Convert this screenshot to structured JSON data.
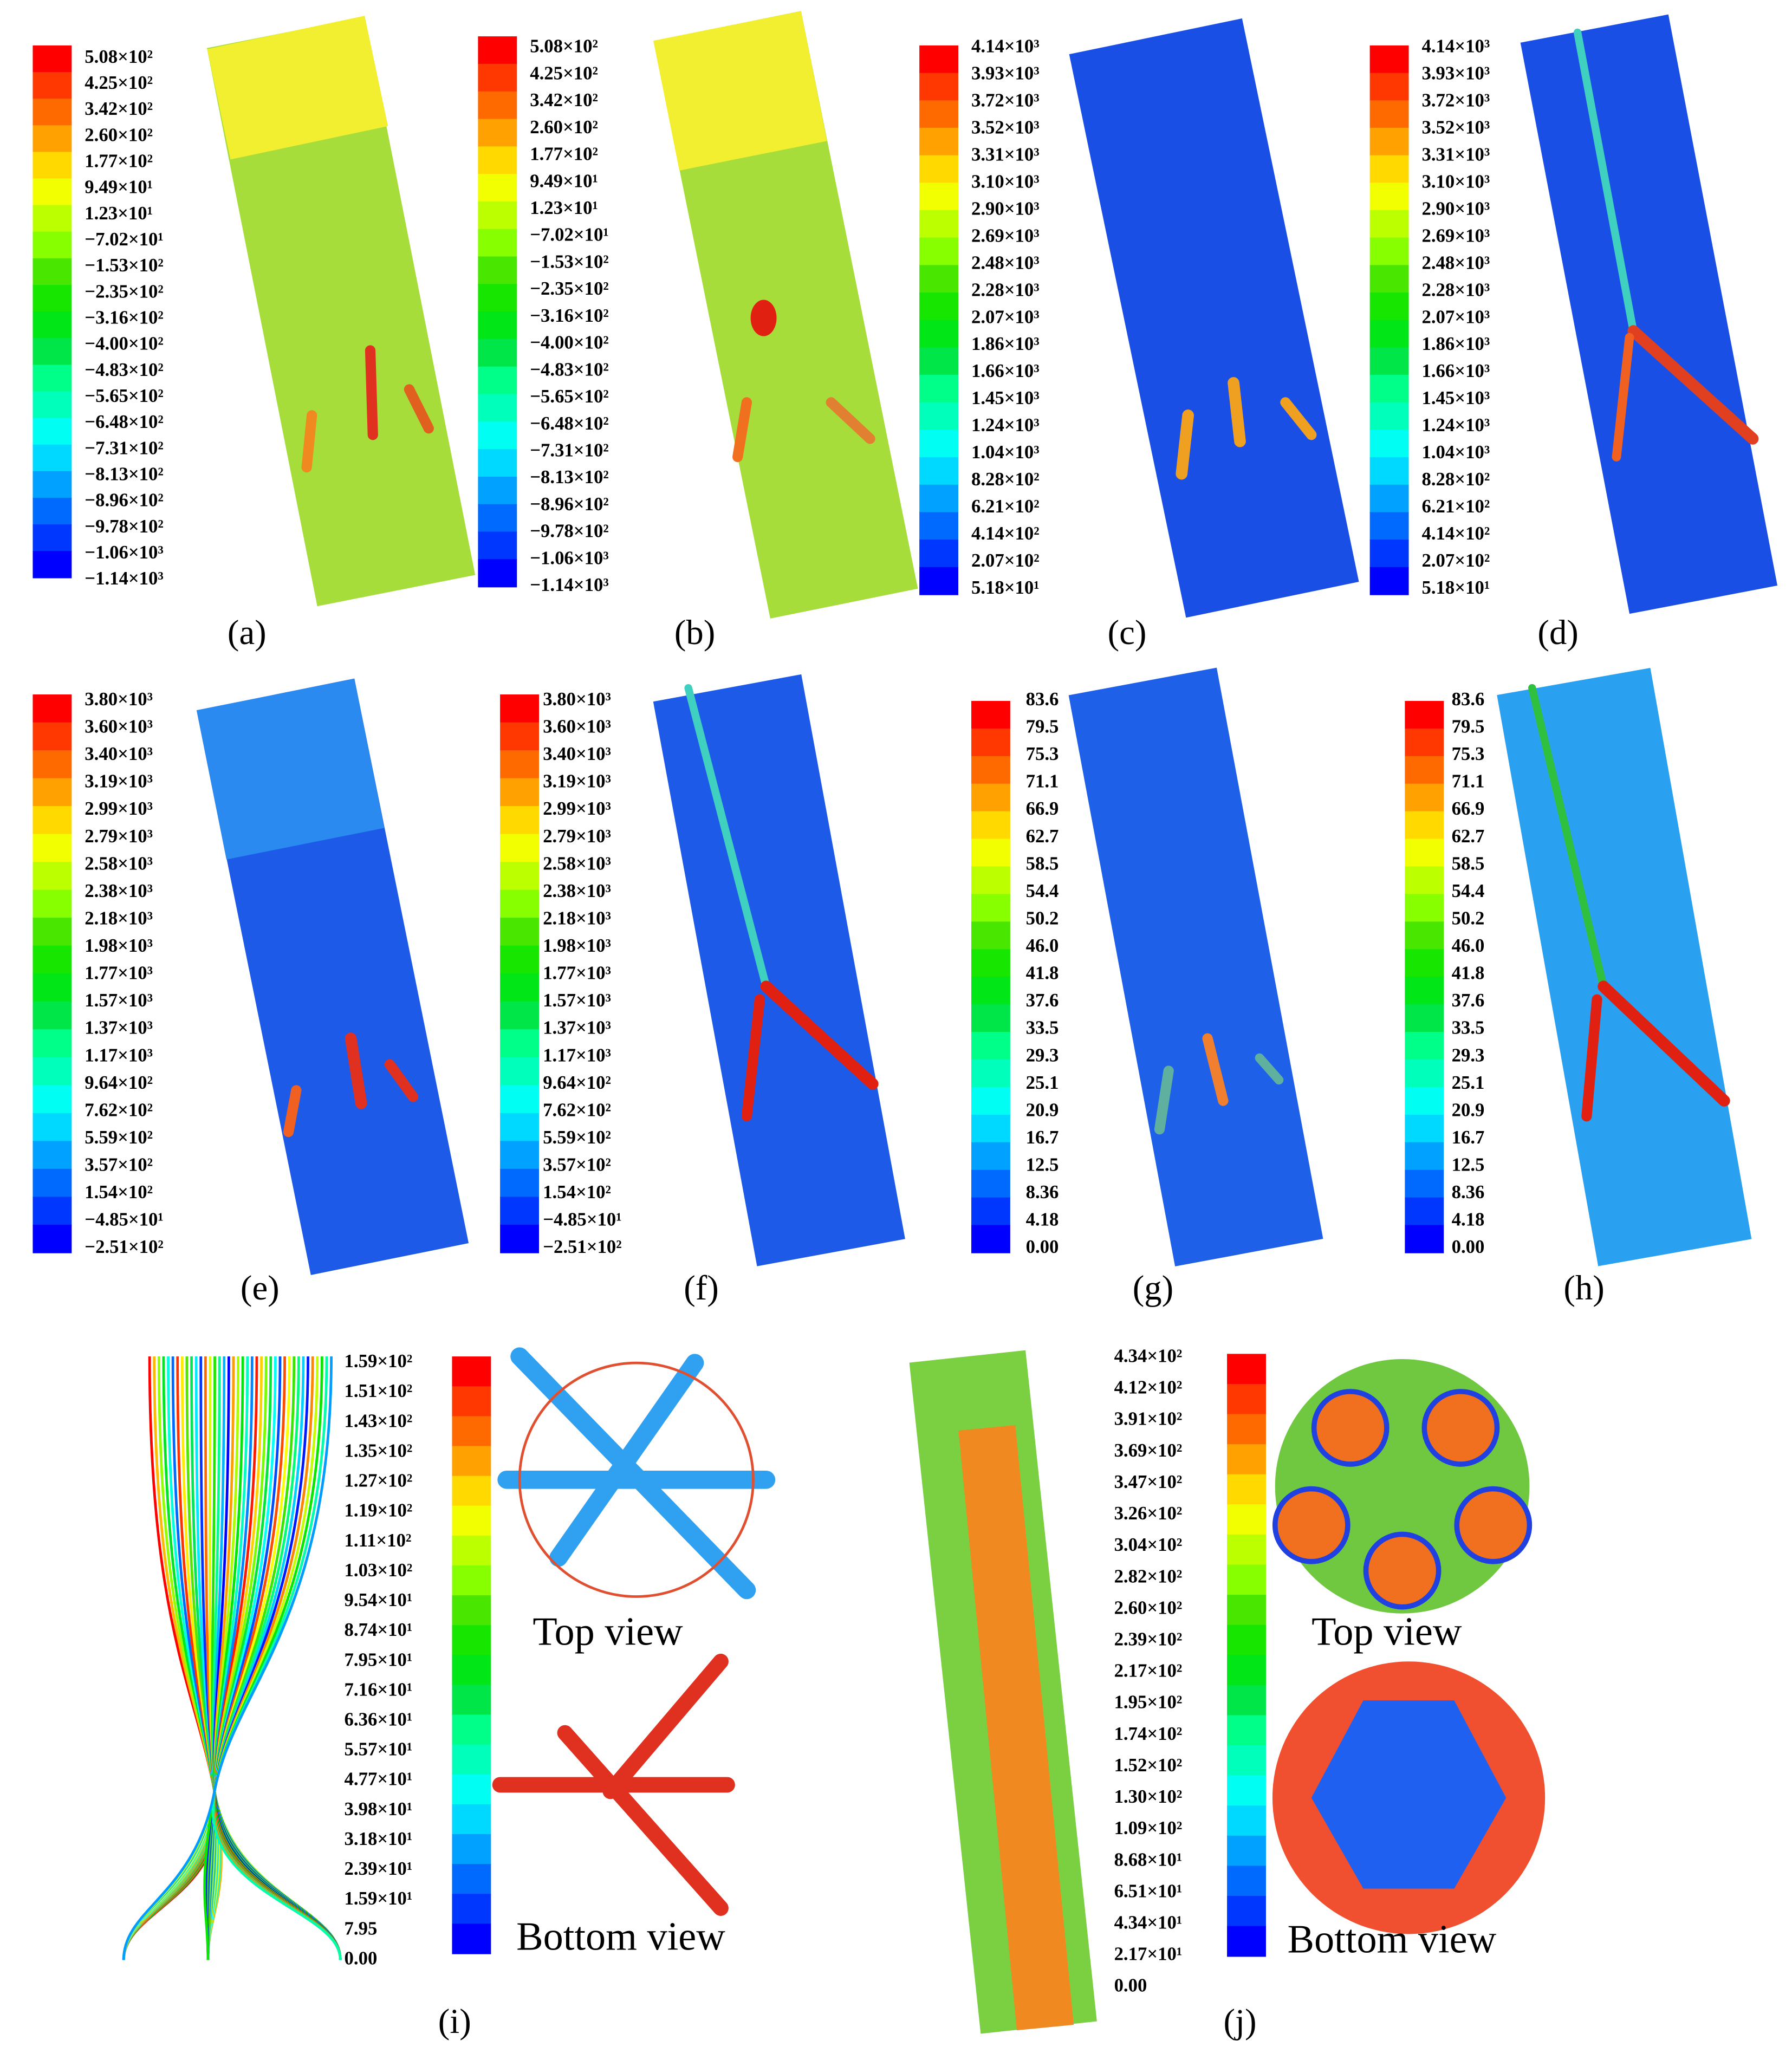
{
  "panels": [
    {
      "label": "(a)",
      "colorbar": [
        "5.08×10²",
        "4.25×10²",
        "3.42×10²",
        "2.60×10²",
        "1.77×10²",
        "9.49×10¹",
        "1.23×10¹",
        "−7.02×10¹",
        "−1.53×10²",
        "−2.35×10²",
        "−3.16×10²",
        "−4.00×10²",
        "−4.83×10²",
        "−5.65×10²",
        "−6.48×10²",
        "−7.31×10²",
        "−8.13×10²",
        "−8.96×10²",
        "−9.78×10²",
        "−1.06×10³",
        "−1.14×10³"
      ]
    },
    {
      "label": "(b)",
      "colorbar": [
        "5.08×10²",
        "4.25×10²",
        "3.42×10²",
        "2.60×10²",
        "1.77×10²",
        "9.49×10¹",
        "1.23×10¹",
        "−7.02×10¹",
        "−1.53×10²",
        "−2.35×10²",
        "−3.16×10²",
        "−4.00×10²",
        "−4.83×10²",
        "−5.65×10²",
        "−6.48×10²",
        "−7.31×10²",
        "−8.13×10²",
        "−8.96×10²",
        "−9.78×10²",
        "−1.06×10³",
        "−1.14×10³"
      ]
    },
    {
      "label": "(c)",
      "colorbar": [
        "4.14×10³",
        "3.93×10³",
        "3.72×10³",
        "3.52×10³",
        "3.31×10³",
        "3.10×10³",
        "2.90×10³",
        "2.69×10³",
        "2.48×10³",
        "2.28×10³",
        "2.07×10³",
        "1.86×10³",
        "1.66×10³",
        "1.45×10³",
        "1.24×10³",
        "1.04×10³",
        "8.28×10²",
        "6.21×10²",
        "4.14×10²",
        "2.07×10²",
        "5.18×10¹"
      ]
    },
    {
      "label": "(d)",
      "colorbar": [
        "4.14×10³",
        "3.93×10³",
        "3.72×10³",
        "3.52×10³",
        "3.31×10³",
        "3.10×10³",
        "2.90×10³",
        "2.69×10³",
        "2.48×10³",
        "2.28×10³",
        "2.07×10³",
        "1.86×10³",
        "1.66×10³",
        "1.45×10³",
        "1.24×10³",
        "1.04×10³",
        "8.28×10²",
        "6.21×10²",
        "4.14×10²",
        "2.07×10²",
        "5.18×10¹"
      ]
    },
    {
      "label": "(e)",
      "colorbar": [
        "3.80×10³",
        "3.60×10³",
        "3.40×10³",
        "3.19×10³",
        "2.99×10³",
        "2.79×10³",
        "2.58×10³",
        "2.38×10³",
        "2.18×10³",
        "1.98×10³",
        "1.77×10³",
        "1.57×10³",
        "1.37×10³",
        "1.17×10³",
        "9.64×10²",
        "7.62×10²",
        "5.59×10²",
        "3.57×10²",
        "1.54×10²",
        "−4.85×10¹",
        "−2.51×10²"
      ]
    },
    {
      "label": "(f)",
      "colorbar": [
        "3.80×10³",
        "3.60×10³",
        "3.40×10³",
        "3.19×10³",
        "2.99×10³",
        "2.79×10³",
        "2.58×10³",
        "2.38×10³",
        "2.18×10³",
        "1.98×10³",
        "1.77×10³",
        "1.57×10³",
        "1.37×10³",
        "1.17×10³",
        "9.64×10²",
        "7.62×10²",
        "5.59×10²",
        "3.57×10²",
        "1.54×10²",
        "−4.85×10¹",
        "−2.51×10²"
      ]
    },
    {
      "label": "(g)",
      "colorbar": [
        "83.6",
        "79.5",
        "75.3",
        "71.1",
        "66.9",
        "62.7",
        "58.5",
        "54.4",
        "50.2",
        "46.0",
        "41.8",
        "37.6",
        "33.5",
        "29.3",
        "25.1",
        "20.9",
        "16.7",
        "12.5",
        "8.36",
        "4.18",
        "0.00"
      ]
    },
    {
      "label": "(h)",
      "colorbar": [
        "83.6",
        "79.5",
        "75.3",
        "71.1",
        "66.9",
        "62.7",
        "58.5",
        "54.4",
        "50.2",
        "46.0",
        "41.8",
        "37.6",
        "33.5",
        "29.3",
        "25.1",
        "20.9",
        "16.7",
        "12.5",
        "8.36",
        "4.18",
        "0.00"
      ]
    },
    {
      "label": "(i)",
      "colorbar": [
        "1.59×10²",
        "1.51×10²",
        "1.43×10²",
        "1.35×10²",
        "1.27×10²",
        "1.19×10²",
        "1.11×10²",
        "1.03×10²",
        "9.54×10¹",
        "8.74×10¹",
        "7.95×10¹",
        "7.16×10¹",
        "6.36×10¹",
        "5.57×10¹",
        "4.77×10¹",
        "3.98×10¹",
        "3.18×10¹",
        "2.39×10¹",
        "1.59×10¹",
        "7.95",
        "0.00"
      ],
      "views": [
        "Top view",
        "Bottom view"
      ]
    },
    {
      "label": "(j)",
      "colorbar": [
        "4.34×10²",
        "4.12×10²",
        "3.91×10²",
        "3.69×10²",
        "3.47×10²",
        "3.26×10²",
        "3.04×10²",
        "2.82×10²",
        "2.60×10²",
        "2.39×10²",
        "2.17×10²",
        "1.95×10²",
        "1.74×10²",
        "1.52×10²",
        "1.30×10²",
        "1.09×10²",
        "8.68×10¹",
        "6.51×10¹",
        "4.34×10¹",
        "2.17×10¹",
        "0.00"
      ],
      "views": [
        "Top view",
        "Bottom view"
      ]
    }
  ]
}
